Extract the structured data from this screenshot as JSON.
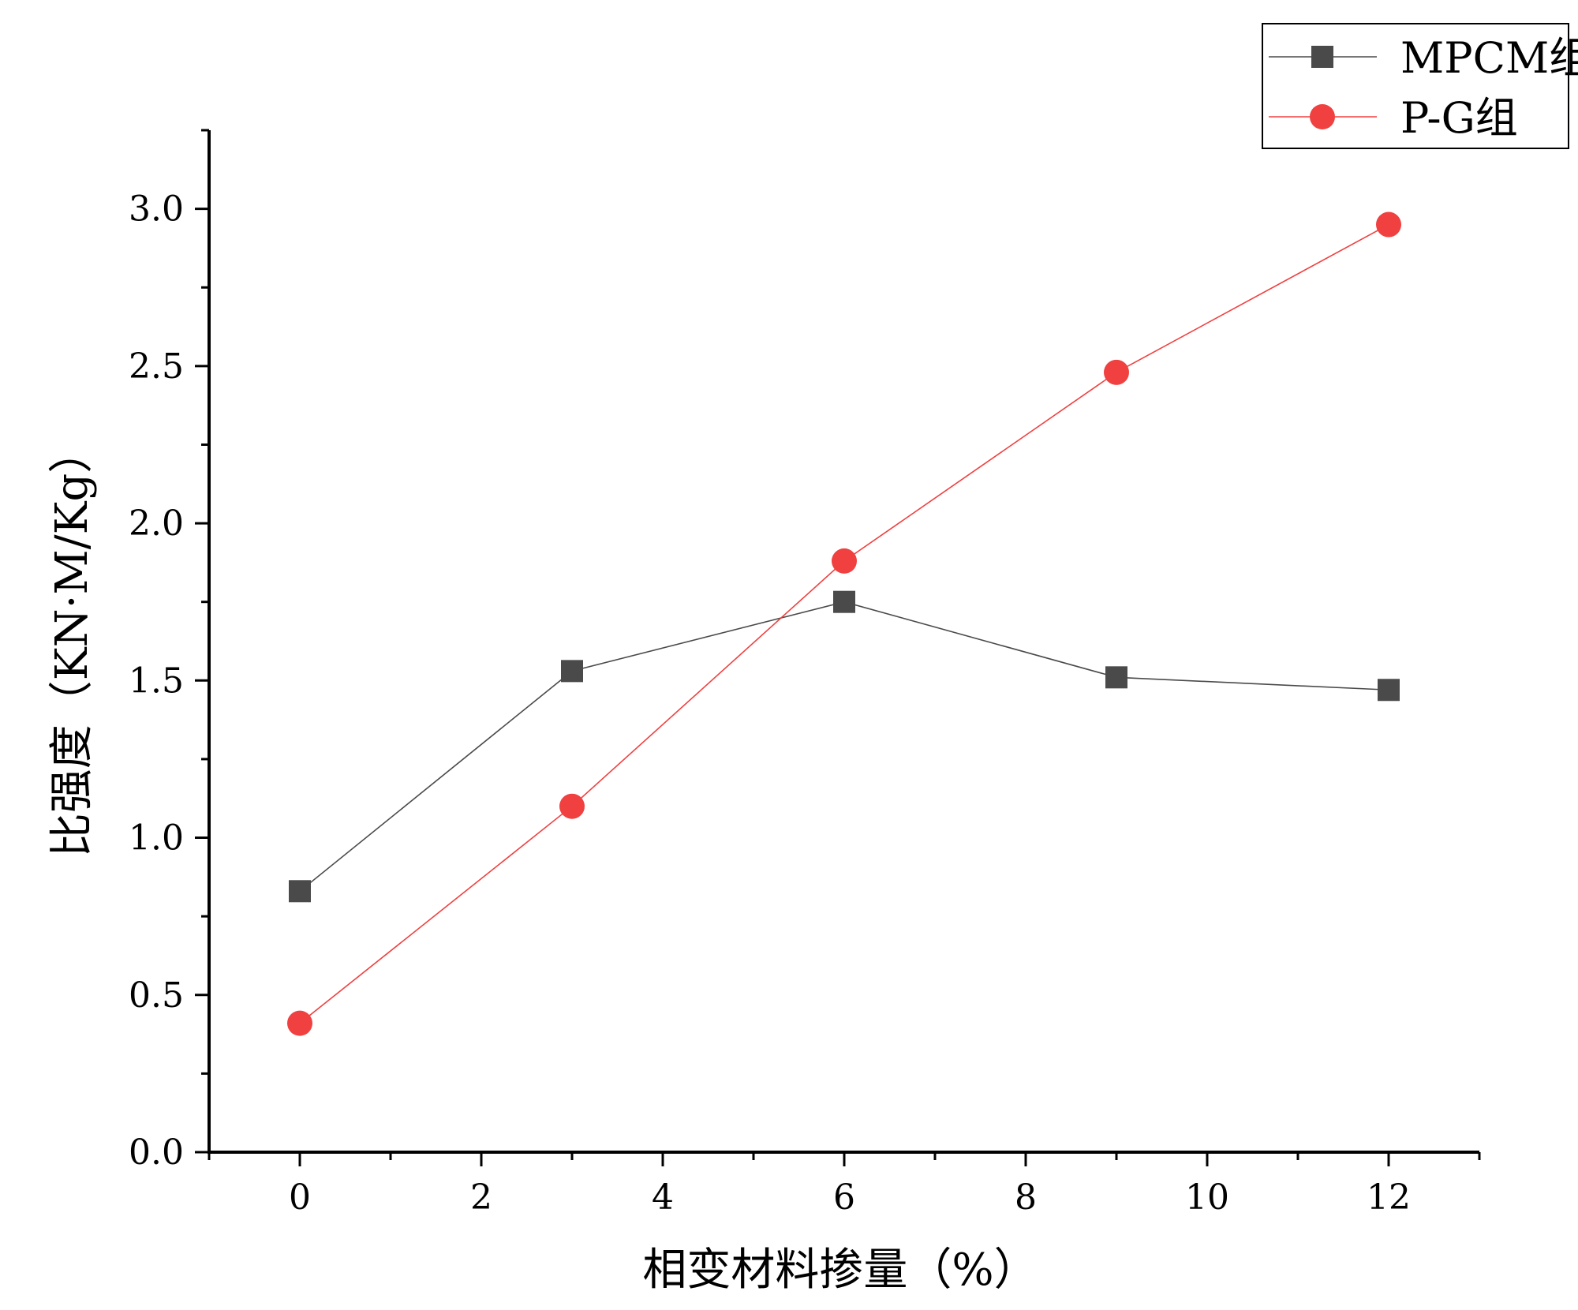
{
  "chart_data": {
    "type": "line",
    "xlabel": "相变材料掺量（%）",
    "ylabel": "比强度（KN·M/Kg）",
    "xlim": [
      -1,
      13
    ],
    "ylim": [
      0,
      3.25
    ],
    "x_ticks": [
      0,
      2,
      4,
      6,
      8,
      10,
      12
    ],
    "x_tick_labels": [
      "0",
      "2",
      "4",
      "6",
      "8",
      "10",
      "12"
    ],
    "y_ticks": [
      0,
      0.5,
      1,
      1.5,
      2,
      2.5,
      3
    ],
    "y_tick_labels": [
      "0.0",
      "0.5",
      "1.0",
      "1.5",
      "2.0",
      "2.5",
      "3.0"
    ],
    "grid": false,
    "legend_position": "top-right",
    "series": [
      {
        "name": "MPCM组",
        "color": "#4a4a4a",
        "marker": "square",
        "x": [
          0,
          3,
          6,
          9,
          12
        ],
        "y": [
          0.83,
          1.53,
          1.75,
          1.51,
          1.47
        ]
      },
      {
        "name": "P-G组",
        "color": "#f04040",
        "marker": "circle",
        "x": [
          0,
          3,
          6,
          9,
          12
        ],
        "y": [
          0.41,
          1.1,
          1.88,
          2.48,
          2.95
        ]
      }
    ]
  }
}
